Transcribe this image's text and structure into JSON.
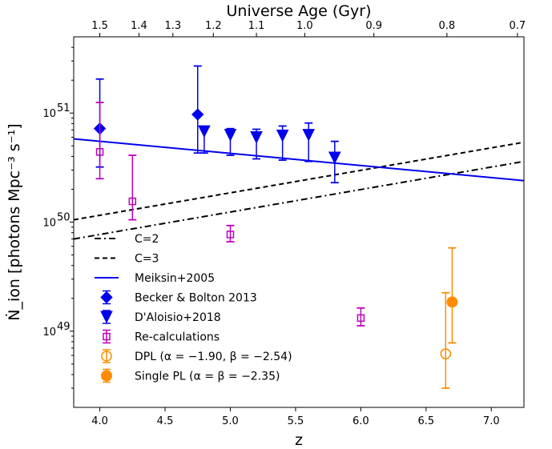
{
  "chart_data": {
    "type": "scatter",
    "xlabel": "z",
    "ylabel": "Ṅ_ion [photons Mpc⁻³ s⁻¹]",
    "top_xlabel": "Universe Age (Gyr)",
    "xlim": [
      3.8,
      7.25
    ],
    "ylim": [
      2e+48,
      5e+51
    ],
    "yscale": "log",
    "x_ticks": [
      4.0,
      4.5,
      5.0,
      5.5,
      6.0,
      6.5,
      7.0
    ],
    "x_tick_labels": [
      "4.0",
      "4.5",
      "5.0",
      "5.5",
      "6.0",
      "6.5",
      "7.0"
    ],
    "y_ticks": [
      1e+49,
      1e+50,
      1e+51
    ],
    "y_tick_labels": [
      "10",
      "10",
      "10"
    ],
    "y_tick_exponents": [
      "49",
      "50",
      "51"
    ],
    "top_ticks": [
      {
        "label": "1.5",
        "z": 4.0
      },
      {
        "label": "1.4",
        "z": 4.3
      },
      {
        "label": "1.3",
        "z": 4.56
      },
      {
        "label": "1.2",
        "z": 4.87
      },
      {
        "label": "1.1",
        "z": 5.2
      },
      {
        "label": "1.0",
        "z": 5.57
      },
      {
        "label": "0.9",
        "z": 6.1
      },
      {
        "label": "0.8",
        "z": 6.66
      },
      {
        "label": "0.7",
        "z": 7.2
      }
    ],
    "grid": false,
    "legend_position": "lower-left",
    "series": [
      {
        "key": "c2",
        "name": "C=2",
        "kind": "line",
        "color": "#000000",
        "dash": "8,4,2,4",
        "x": [
          3.8,
          7.25
        ],
        "y": [
          7e+49,
          3.6e+50
        ]
      },
      {
        "key": "c3",
        "name": "C=3",
        "kind": "line",
        "color": "#000000",
        "dash": "6,4",
        "x": [
          3.8,
          7.25
        ],
        "y": [
          1.05e+50,
          5.4e+50
        ]
      },
      {
        "key": "meiksin",
        "name": "Meiksin+2005",
        "kind": "line",
        "color": "#0000ee",
        "dash": "",
        "x": [
          3.8,
          7.25
        ],
        "y": [
          5.8e+50,
          2.4e+50
        ]
      },
      {
        "key": "becker",
        "name": "Becker & Bolton 2013",
        "kind": "points",
        "marker": "diamond",
        "color": "#0000ee",
        "points": [
          {
            "x": 4.0,
            "y": 7.2e+50,
            "ylo": 3.2e+50,
            "yhi": 2.05e+51
          },
          {
            "x": 4.75,
            "y": 9.7e+50,
            "ylo": 4.3e+50,
            "yhi": 2.7e+51
          }
        ]
      },
      {
        "key": "daloisio",
        "name": "D'Aloisio+2018",
        "kind": "points",
        "marker": "triangle-down",
        "color": "#0000ee",
        "points": [
          {
            "x": 4.8,
            "y": 6.8e+50,
            "ylo": 4.3e+50,
            "yhi": 7.4e+50
          },
          {
            "x": 5.0,
            "y": 6.3e+50,
            "ylo": 4.1e+50,
            "yhi": 7.2e+50
          },
          {
            "x": 5.2,
            "y": 6e+50,
            "ylo": 3.8e+50,
            "yhi": 7.1e+50
          },
          {
            "x": 5.4,
            "y": 6.2e+50,
            "ylo": 3.7e+50,
            "yhi": 7.6e+50
          },
          {
            "x": 5.6,
            "y": 6.3e+50,
            "ylo": 3.6e+50,
            "yhi": 8.1e+50
          },
          {
            "x": 5.8,
            "y": 3.9e+50,
            "ylo": 2.3e+50,
            "yhi": 5.5e+50
          }
        ]
      },
      {
        "key": "recalc",
        "name": "Re-calculations",
        "kind": "points",
        "marker": "square-open",
        "color": "#bf00bf",
        "points": [
          {
            "x": 4.0,
            "y": 4.4e+50,
            "ylo": 2.5e+50,
            "yhi": 1.25e+51
          },
          {
            "x": 4.25,
            "y": 1.55e+50,
            "ylo": 1.05e+50,
            "yhi": 4.1e+50
          },
          {
            "x": 5.0,
            "y": 7.7e+49,
            "ylo": 6.6e+49,
            "yhi": 9.3e+49
          },
          {
            "x": 6.0,
            "y": 1.32e+49,
            "ylo": 1.12e+49,
            "yhi": 1.63e+49
          }
        ]
      },
      {
        "key": "dpl",
        "name": "DPL (α = −1.90, β = −2.54)",
        "kind": "points",
        "marker": "circle-open",
        "color": "#ff8c00",
        "points": [
          {
            "x": 6.65,
            "y": 6.2e+48,
            "ylo": 3e+48,
            "yhi": 2.25e+49
          }
        ]
      },
      {
        "key": "spl",
        "name": "Single PL (α = β = −2.35)",
        "kind": "points",
        "marker": "circle-filled",
        "color": "#ff8c00",
        "points": [
          {
            "x": 6.7,
            "y": 1.85e+49,
            "ylo": 7.8e+48,
            "yhi": 5.8e+49
          }
        ]
      }
    ]
  }
}
